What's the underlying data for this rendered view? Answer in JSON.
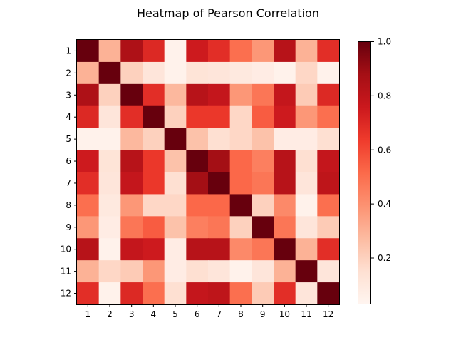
{
  "chart_data": {
    "type": "heatmap",
    "title": "Heatmap of Pearson Correlation",
    "xlabel": "",
    "ylabel": "",
    "labels": [
      "1",
      "2",
      "3",
      "4",
      "5",
      "6",
      "7",
      "8",
      "9",
      "10",
      "11",
      "12"
    ],
    "matrix": [
      [
        1.0,
        0.3,
        0.85,
        0.7,
        0.05,
        0.75,
        0.68,
        0.5,
        0.38,
        0.82,
        0.3,
        0.68
      ],
      [
        0.3,
        1.0,
        0.2,
        0.12,
        0.05,
        0.13,
        0.12,
        0.1,
        0.08,
        0.05,
        0.18,
        0.05
      ],
      [
        0.85,
        0.2,
        1.0,
        0.68,
        0.28,
        0.82,
        0.78,
        0.38,
        0.48,
        0.78,
        0.22,
        0.7
      ],
      [
        0.7,
        0.12,
        0.68,
        1.0,
        0.2,
        0.65,
        0.65,
        0.18,
        0.55,
        0.75,
        0.38,
        0.5
      ],
      [
        0.05,
        0.05,
        0.28,
        0.2,
        1.0,
        0.25,
        0.15,
        0.18,
        0.25,
        0.08,
        0.08,
        0.15
      ],
      [
        0.75,
        0.13,
        0.82,
        0.65,
        0.25,
        1.0,
        0.88,
        0.52,
        0.45,
        0.82,
        0.15,
        0.78
      ],
      [
        0.68,
        0.12,
        0.78,
        0.65,
        0.15,
        0.88,
        1.0,
        0.52,
        0.48,
        0.82,
        0.12,
        0.8
      ],
      [
        0.5,
        0.1,
        0.38,
        0.18,
        0.18,
        0.52,
        0.52,
        1.0,
        0.2,
        0.42,
        0.05,
        0.5
      ],
      [
        0.38,
        0.08,
        0.48,
        0.55,
        0.25,
        0.45,
        0.48,
        0.2,
        1.0,
        0.48,
        0.12,
        0.22
      ],
      [
        0.82,
        0.05,
        0.78,
        0.75,
        0.08,
        0.82,
        0.82,
        0.42,
        0.48,
        1.0,
        0.3,
        0.68
      ],
      [
        0.3,
        0.18,
        0.22,
        0.38,
        0.08,
        0.15,
        0.12,
        0.05,
        0.12,
        0.3,
        1.0,
        0.12
      ],
      [
        0.68,
        0.05,
        0.7,
        0.5,
        0.15,
        0.78,
        0.8,
        0.5,
        0.22,
        0.68,
        0.12,
        1.0
      ]
    ],
    "colorbar": {
      "colormap": "Reds",
      "range": [
        0.03,
        1.0
      ],
      "ticks": [
        0.2,
        0.4,
        0.6,
        0.8,
        1.0
      ],
      "tick_labels": [
        "0.2",
        "0.4",
        "0.6",
        "0.8",
        "1.0"
      ]
    },
    "grid": false
  }
}
